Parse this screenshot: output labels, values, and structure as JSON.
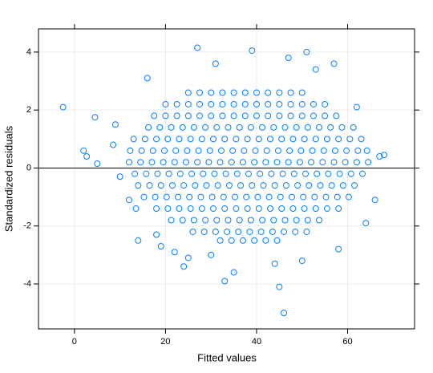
{
  "chart_data": {
    "type": "scatter",
    "x_label": "Fitted values",
    "y_label": "Standardized residuals",
    "color": "#0080ff",
    "grid": true,
    "hline": 0,
    "xlim": [
      -7.9,
      74.7
    ],
    "ylim": [
      -5.55,
      4.8
    ],
    "xticks": [
      0,
      20,
      40,
      60
    ],
    "yticks": [
      -4,
      -2,
      0,
      2,
      4
    ],
    "x": [
      25,
      27.5,
      30,
      32.5,
      35,
      37.5,
      40,
      42.5,
      45,
      47.5,
      50,
      20,
      22.5,
      25,
      27.5,
      30,
      32.5,
      35,
      37.5,
      40,
      42.5,
      45,
      47.5,
      50,
      52.5,
      55,
      17.5,
      20,
      22.5,
      25,
      27.5,
      30,
      32.5,
      35,
      37.5,
      40,
      42.5,
      45,
      47.5,
      50,
      52.5,
      55,
      57.5,
      16.25,
      18.75,
      21.25,
      23.75,
      26.25,
      28.75,
      31.25,
      33.75,
      36.25,
      38.75,
      41.25,
      43.75,
      46.25,
      48.75,
      51.25,
      53.75,
      56.25,
      58.75,
      61.25,
      13,
      15.5,
      18,
      20.5,
      23,
      25.5,
      28,
      30.5,
      33,
      35.5,
      38,
      40.5,
      43,
      45.5,
      48,
      50.5,
      53,
      55.5,
      58,
      60.5,
      63,
      12.25,
      14.75,
      17.25,
      19.75,
      22.25,
      24.75,
      27.25,
      29.75,
      32.25,
      34.75,
      37.25,
      39.75,
      42.25,
      44.75,
      47.25,
      49.75,
      52.25,
      54.75,
      57.25,
      59.75,
      62.25,
      64.25,
      12,
      14.5,
      17,
      19.5,
      22,
      24.5,
      27,
      29.5,
      32,
      34.5,
      37,
      39.5,
      42,
      44.5,
      47,
      49.5,
      52,
      54.5,
      57,
      59.5,
      62,
      64.5,
      13.25,
      15.75,
      18.25,
      20.75,
      23.25,
      25.75,
      28.25,
      30.75,
      33.25,
      35.75,
      38.25,
      40.75,
      43.25,
      45.75,
      48.25,
      50.75,
      53.25,
      55.75,
      58.25,
      60.75,
      63.25,
      14,
      16.5,
      19,
      21.5,
      24,
      26.5,
      29,
      31.5,
      34,
      36.5,
      39,
      41.5,
      44,
      46.5,
      49,
      51.5,
      54,
      56.5,
      59,
      61.5,
      15.25,
      17.75,
      20.25,
      22.75,
      25.25,
      27.75,
      30.25,
      32.75,
      35.25,
      37.75,
      40.25,
      42.75,
      45.25,
      47.75,
      50.25,
      52.75,
      55.25,
      57.75,
      60.25,
      18,
      20.5,
      23,
      25.5,
      28,
      30.5,
      33,
      35.5,
      38,
      40.5,
      43,
      45.5,
      48,
      50.5,
      53,
      55.5,
      58,
      21.25,
      23.75,
      26.25,
      28.75,
      31.25,
      33.75,
      36.25,
      38.75,
      41.25,
      43.75,
      46.25,
      48.75,
      51.25,
      53.75,
      26,
      28.5,
      31,
      33.5,
      36,
      38.5,
      41,
      43.5,
      46,
      48.5,
      51,
      32,
      34.5,
      37,
      39.5,
      42,
      44.5,
      -2.5,
      2,
      2.7,
      4.5,
      5,
      8.5,
      9,
      10,
      12,
      13.5,
      14,
      16,
      18,
      19,
      22,
      24,
      25,
      27,
      31,
      33,
      35,
      39,
      45,
      46,
      47,
      50,
      51,
      57,
      62,
      64,
      66,
      67,
      68,
      44,
      30,
      58,
      53
    ],
    "y": [
      2.6,
      2.6,
      2.6,
      2.6,
      2.6,
      2.6,
      2.6,
      2.6,
      2.6,
      2.6,
      2.6,
      2.2,
      2.2,
      2.2,
      2.2,
      2.2,
      2.2,
      2.2,
      2.2,
      2.2,
      2.2,
      2.2,
      2.2,
      2.2,
      2.2,
      2.2,
      1.8,
      1.8,
      1.8,
      1.8,
      1.8,
      1.8,
      1.8,
      1.8,
      1.8,
      1.8,
      1.8,
      1.8,
      1.8,
      1.8,
      1.8,
      1.8,
      1.8,
      1.4,
      1.4,
      1.4,
      1.4,
      1.4,
      1.4,
      1.4,
      1.4,
      1.4,
      1.4,
      1.4,
      1.4,
      1.4,
      1.4,
      1.4,
      1.4,
      1.4,
      1.4,
      1.4,
      1,
      1,
      1,
      1,
      1,
      1,
      1,
      1,
      1,
      1,
      1,
      1,
      1,
      1,
      1,
      1,
      1,
      1,
      1,
      1,
      1,
      0.6,
      0.6,
      0.6,
      0.6,
      0.6,
      0.6,
      0.6,
      0.6,
      0.6,
      0.6,
      0.6,
      0.6,
      0.6,
      0.6,
      0.6,
      0.6,
      0.6,
      0.6,
      0.6,
      0.6,
      0.6,
      0.6,
      0.2,
      0.2,
      0.2,
      0.2,
      0.2,
      0.2,
      0.2,
      0.2,
      0.2,
      0.2,
      0.2,
      0.2,
      0.2,
      0.2,
      0.2,
      0.2,
      0.2,
      0.2,
      0.2,
      0.2,
      0.2,
      0.2,
      -0.2,
      -0.2,
      -0.2,
      -0.2,
      -0.2,
      -0.2,
      -0.2,
      -0.2,
      -0.2,
      -0.2,
      -0.2,
      -0.2,
      -0.2,
      -0.2,
      -0.2,
      -0.2,
      -0.2,
      -0.2,
      -0.2,
      -0.2,
      -0.2,
      -0.6,
      -0.6,
      -0.6,
      -0.6,
      -0.6,
      -0.6,
      -0.6,
      -0.6,
      -0.6,
      -0.6,
      -0.6,
      -0.6,
      -0.6,
      -0.6,
      -0.6,
      -0.6,
      -0.6,
      -0.6,
      -0.6,
      -0.6,
      -1,
      -1,
      -1,
      -1,
      -1,
      -1,
      -1,
      -1,
      -1,
      -1,
      -1,
      -1,
      -1,
      -1,
      -1,
      -1,
      -1,
      -1,
      -1,
      -1.4,
      -1.4,
      -1.4,
      -1.4,
      -1.4,
      -1.4,
      -1.4,
      -1.4,
      -1.4,
      -1.4,
      -1.4,
      -1.4,
      -1.4,
      -1.4,
      -1.4,
      -1.4,
      -1.4,
      -1.8,
      -1.8,
      -1.8,
      -1.8,
      -1.8,
      -1.8,
      -1.8,
      -1.8,
      -1.8,
      -1.8,
      -1.8,
      -1.8,
      -1.8,
      -1.8,
      -2.2,
      -2.2,
      -2.2,
      -2.2,
      -2.2,
      -2.2,
      -2.2,
      -2.2,
      -2.2,
      -2.2,
      -2.2,
      -2.5,
      -2.5,
      -2.5,
      -2.5,
      -2.5,
      -2.5,
      2.1,
      0.6,
      0.4,
      1.75,
      0.15,
      0.8,
      1.5,
      -0.3,
      -1.1,
      -1.4,
      -2.5,
      3.1,
      -2.3,
      -2.7,
      -2.9,
      -3.4,
      -3.1,
      4.15,
      3.6,
      -3.9,
      -3.6,
      4.05,
      -4.1,
      -5,
      3.8,
      -3.2,
      4,
      3.6,
      2.1,
      -1.9,
      -1.1,
      0.4,
      0.45,
      -3.3,
      -3,
      -2.8,
      3.4
    ]
  }
}
